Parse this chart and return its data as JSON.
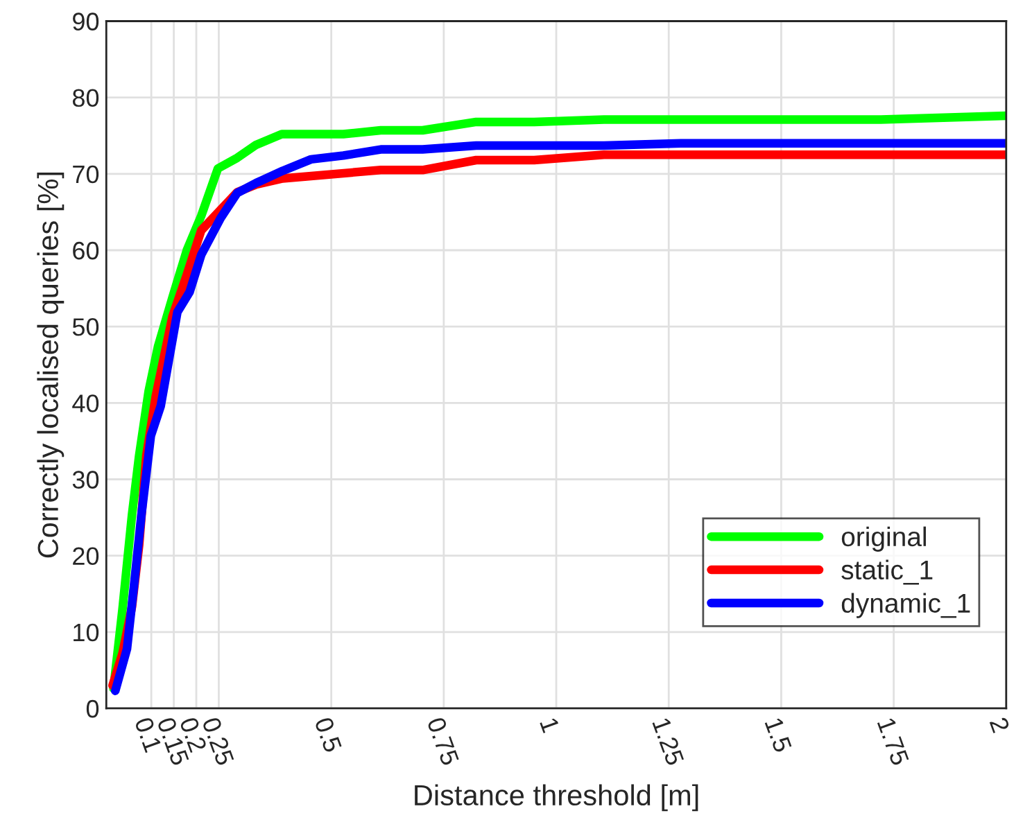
{
  "chart_data": {
    "type": "line",
    "xlabel": "Distance threshold [m]",
    "ylabel": "Correctly localised queries [%]",
    "xlim": [
      0,
      2
    ],
    "xticks": [
      0.1,
      0.15,
      0.2,
      0.25,
      0.5,
      0.75,
      1,
      1.25,
      1.5,
      1.75,
      2
    ],
    "ylim": [
      0,
      90
    ],
    "yticks": [
      0,
      10,
      20,
      30,
      40,
      50,
      60,
      70,
      80,
      90
    ],
    "grid": true,
    "legend": "bottom right",
    "line_style": "solid",
    "marker": "none",
    "series": [
      {
        "name": "original",
        "color": "#00ff00",
        "x": [
          0.016,
          0.036,
          0.057,
          0.073,
          0.094,
          0.115,
          0.147,
          0.179,
          0.211,
          0.248,
          0.291,
          0.333,
          0.39,
          0.527,
          0.61,
          0.703,
          0.822,
          0.951,
          1.106,
          1.721,
          2.0
        ],
        "values": [
          2.6,
          13.0,
          25.3,
          33.1,
          41.5,
          47.4,
          53.8,
          60.0,
          64.5,
          70.7,
          72.1,
          73.8,
          75.2,
          75.2,
          75.7,
          75.7,
          76.8,
          76.8,
          77.1,
          77.1,
          77.6
        ]
      },
      {
        "name": "static_1",
        "color": "#ff0000",
        "x": [
          0.014,
          0.036,
          0.057,
          0.073,
          0.089,
          0.11,
          0.147,
          0.179,
          0.211,
          0.291,
          0.333,
          0.392,
          0.61,
          0.703,
          0.822,
          0.951,
          1.106,
          2.0
        ],
        "values": [
          3.0,
          7.2,
          13.3,
          21.4,
          33.1,
          40.9,
          51.3,
          56.8,
          62.6,
          67.6,
          68.6,
          69.4,
          70.5,
          70.5,
          71.8,
          71.8,
          72.5,
          72.5
        ]
      },
      {
        "name": "dynamic_1",
        "color": "#0000ff",
        "x": [
          0.02,
          0.046,
          0.062,
          0.078,
          0.099,
          0.121,
          0.158,
          0.185,
          0.211,
          0.254,
          0.291,
          0.333,
          0.392,
          0.455,
          0.527,
          0.61,
          0.703,
          0.822,
          1.106,
          1.277,
          2.0
        ],
        "values": [
          2.3,
          7.8,
          16.3,
          25.3,
          35.7,
          39.6,
          51.9,
          54.5,
          59.4,
          64.2,
          67.5,
          68.8,
          70.4,
          71.9,
          72.4,
          73.2,
          73.2,
          73.7,
          73.7,
          74.0,
          74.0
        ]
      }
    ]
  }
}
